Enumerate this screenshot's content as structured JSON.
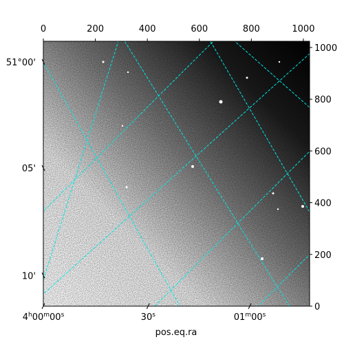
{
  "chart_data": {
    "type": "image",
    "xlabel": "pos.eq.ra",
    "xlim": [
      0,
      1024
    ],
    "ylim": [
      0,
      1024
    ],
    "xticks": [
      0,
      200,
      400,
      600,
      800,
      1000
    ],
    "yticks": [
      0,
      200,
      400,
      600,
      800,
      1000
    ],
    "ra_ticks": [
      {
        "value": 0,
        "label": "4h00m00s"
      },
      {
        "value": 403,
        "label": "30s"
      },
      {
        "value": 794,
        "label": "01m00s"
      }
    ],
    "dec_ticks": [
      {
        "value": 944,
        "label": "51°00'"
      },
      {
        "value": 534,
        "label": "05'"
      },
      {
        "value": 119,
        "label": "10'"
      }
    ],
    "grid_color": "#00e5e5"
  }
}
